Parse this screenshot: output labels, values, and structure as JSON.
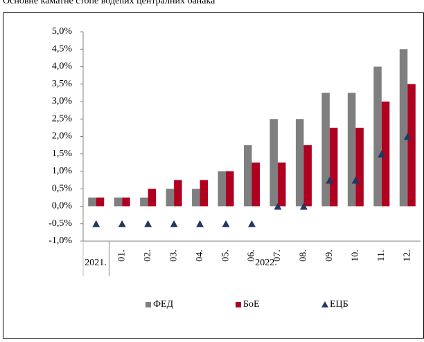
{
  "chart_data": {
    "type": "bar",
    "title": "Основне каматне стопе водећих централних банака",
    "categories": [
      null,
      "01.",
      "02.",
      "03.",
      "04.",
      "05.",
      "06.",
      "07.",
      "08.",
      "09.",
      "10.",
      "11.",
      "12."
    ],
    "groups": [
      "2021.",
      "2022."
    ],
    "series": [
      {
        "name": "ФЕД",
        "color": "#7f7f7f",
        "marker": "bar",
        "values": [
          0.25,
          0.25,
          0.25,
          0.5,
          0.5,
          1.0,
          1.75,
          2.5,
          2.5,
          3.25,
          3.25,
          4.0,
          4.5
        ]
      },
      {
        "name": "БоЕ",
        "color": "#b00020",
        "marker": "bar",
        "values": [
          0.25,
          0.25,
          0.5,
          0.75,
          0.75,
          1.0,
          1.25,
          1.25,
          1.75,
          2.25,
          2.25,
          3.0,
          3.5
        ]
      },
      {
        "name": "ЕЦБ",
        "color": "#1f3864",
        "marker": "triangle",
        "values": [
          -0.5,
          -0.5,
          -0.5,
          -0.5,
          -0.5,
          -0.5,
          -0.5,
          0,
          0,
          0.75,
          0.75,
          1.5,
          2.0
        ]
      }
    ],
    "ylim": [
      -1,
      5
    ],
    "yticks": [
      {
        "value": -1,
        "label": "-1,0%"
      },
      {
        "value": -0.5,
        "label": "-0,5%"
      },
      {
        "value": 0,
        "label": "0,0%"
      },
      {
        "value": 0.5,
        "label": "0,5%"
      },
      {
        "value": 1,
        "label": "1,0%"
      },
      {
        "value": 1.5,
        "label": "1,5%"
      },
      {
        "value": 2,
        "label": "2,0%"
      },
      {
        "value": 2.5,
        "label": "2,5%"
      },
      {
        "value": 3,
        "label": "3,0%"
      },
      {
        "value": 3.5,
        "label": "3,5%"
      },
      {
        "value": 4,
        "label": "4,0%"
      },
      {
        "value": 4.5,
        "label": "4,5%"
      },
      {
        "value": 5,
        "label": "5,0%"
      }
    ],
    "grid": false
  }
}
